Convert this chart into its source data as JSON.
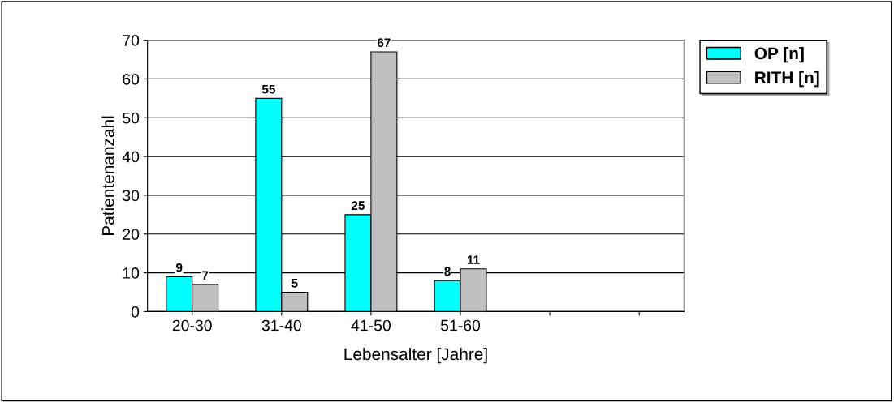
{
  "chart_data": {
    "type": "bar",
    "xlabel": "Lebensalter [Jahre]",
    "ylabel": "Patientenanzahl",
    "categories": [
      "20-30",
      "31-40",
      "41-50",
      "51-60",
      null,
      null
    ],
    "series": [
      {
        "name": "OP [n]",
        "color": "#00ffff",
        "values": [
          9,
          55,
          25,
          8,
          null,
          null
        ]
      },
      {
        "name": "RITH [n]",
        "color": "#c0c0c0",
        "values": [
          7,
          5,
          67,
          11,
          null,
          null
        ]
      }
    ],
    "ylim": [
      0,
      70
    ],
    "yticks": [
      0,
      10,
      20,
      30,
      40,
      50,
      60,
      70
    ],
    "grid": "y",
    "legend": "top right",
    "data_labels": true
  }
}
